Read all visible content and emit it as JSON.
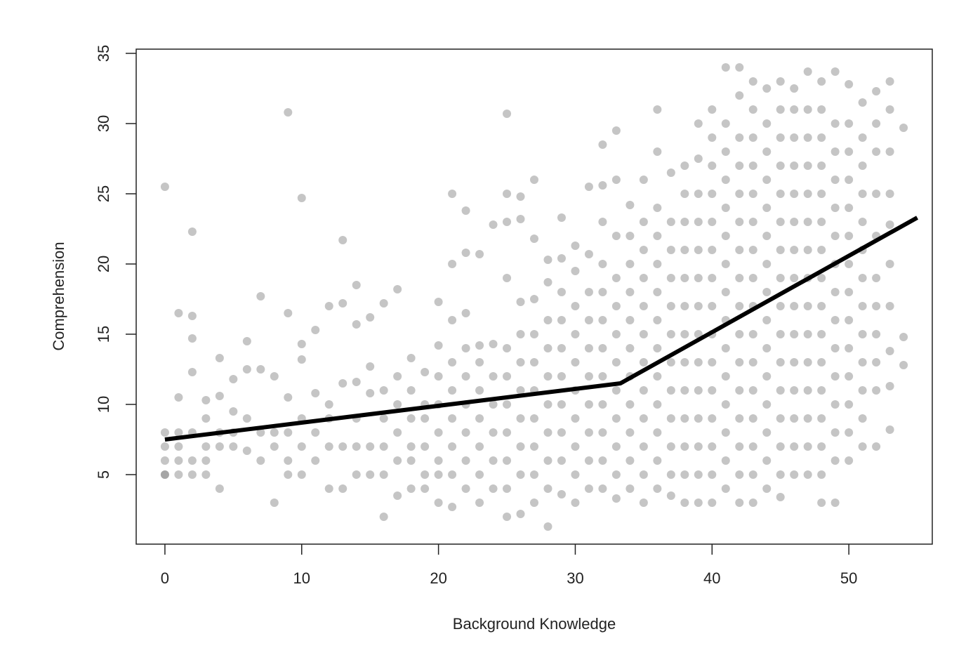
{
  "chart_data": {
    "type": "scatter",
    "x_label": "Background Knowledge",
    "y_label": "Comprehension",
    "xlim": [
      -2.1,
      56.1
    ],
    "xticks": [
      0,
      10,
      20,
      30,
      40,
      50
    ],
    "ylim": [
      0.05,
      35.3
    ],
    "yticks": [
      5,
      10,
      15,
      20,
      25,
      30,
      35
    ],
    "series": [
      {
        "type": "scatter",
        "color": "#7f7f7f",
        "opacity": 0.45,
        "x": [
          0,
          0,
          0,
          0,
          0,
          0,
          1,
          1,
          1,
          1,
          1,
          1,
          2,
          2,
          2,
          2,
          2,
          2,
          2,
          3,
          3,
          3,
          3,
          3,
          4,
          4,
          4,
          4,
          4,
          5,
          5,
          5,
          5,
          6,
          6,
          6,
          6,
          7,
          7,
          7,
          7,
          8,
          8,
          8,
          8,
          9,
          9,
          9,
          9,
          9,
          9,
          10,
          10,
          10,
          10,
          10,
          10,
          11,
          11,
          11,
          11,
          12,
          12,
          12,
          12,
          12,
          13,
          13,
          13,
          13,
          13,
          14,
          14,
          14,
          14,
          14,
          14,
          15,
          15,
          15,
          15,
          15,
          16,
          16,
          16,
          16,
          16,
          16,
          17,
          17,
          17,
          17,
          17,
          17,
          18,
          18,
          18,
          18,
          18,
          18,
          19,
          19,
          19,
          19,
          19,
          19,
          20,
          20,
          20,
          20,
          20,
          20,
          20,
          20,
          21,
          21,
          21,
          21,
          21,
          21,
          21,
          21,
          21,
          22,
          22,
          22,
          22,
          22,
          22,
          22,
          22,
          22,
          23,
          23,
          23,
          23,
          23,
          23,
          23,
          23,
          24,
          24,
          24,
          24,
          24,
          24,
          24,
          25,
          25,
          25,
          25,
          25,
          25,
          25,
          25,
          25,
          25,
          25,
          26,
          26,
          26,
          26,
          26,
          26,
          26,
          26,
          26,
          26,
          27,
          27,
          27,
          27,
          27,
          27,
          27,
          27,
          27,
          27,
          28,
          28,
          28,
          28,
          28,
          28,
          28,
          28,
          28,
          28,
          29,
          29,
          29,
          29,
          29,
          29,
          29,
          29,
          29,
          29,
          30,
          30,
          30,
          30,
          30,
          30,
          30,
          30,
          30,
          30,
          31,
          31,
          31,
          31,
          31,
          31,
          31,
          31,
          31,
          31,
          32,
          32,
          32,
          32,
          32,
          32,
          32,
          32,
          32,
          32,
          32,
          32,
          33,
          33,
          33,
          33,
          33,
          33,
          33,
          33,
          33,
          33,
          33,
          33,
          34,
          34,
          34,
          34,
          34,
          34,
          34,
          34,
          34,
          34,
          34,
          35,
          35,
          35,
          35,
          35,
          35,
          35,
          35,
          35,
          35,
          35,
          35,
          36,
          36,
          36,
          36,
          36,
          36,
          36,
          36,
          36,
          36,
          36,
          36,
          36,
          37,
          37,
          37,
          37,
          37,
          37,
          37,
          37,
          37,
          37,
          37,
          37,
          38,
          38,
          38,
          38,
          38,
          38,
          38,
          38,
          38,
          38,
          38,
          38,
          38,
          39,
          39,
          39,
          39,
          39,
          39,
          39,
          39,
          39,
          39,
          39,
          39,
          39,
          39,
          40,
          40,
          40,
          40,
          40,
          40,
          40,
          40,
          40,
          40,
          40,
          40,
          40,
          40,
          40,
          41,
          41,
          41,
          41,
          41,
          41,
          41,
          41,
          41,
          41,
          41,
          41,
          41,
          41,
          41,
          42,
          42,
          42,
          42,
          42,
          42,
          42,
          42,
          42,
          42,
          42,
          42,
          42,
          42,
          42,
          42,
          43,
          43,
          43,
          43,
          43,
          43,
          43,
          43,
          43,
          43,
          43,
          43,
          43,
          43,
          43,
          43,
          44,
          44,
          44,
          44,
          44,
          44,
          44,
          44,
          44,
          44,
          44,
          44,
          44,
          44,
          44,
          45,
          45,
          45,
          45,
          45,
          45,
          45,
          45,
          45,
          45,
          45,
          45,
          45,
          45,
          45,
          45,
          46,
          46,
          46,
          46,
          46,
          46,
          46,
          46,
          46,
          46,
          46,
          46,
          46,
          46,
          46,
          47,
          47,
          47,
          47,
          47,
          47,
          47,
          47,
          47,
          47,
          47,
          47,
          47,
          47,
          47,
          48,
          48,
          48,
          48,
          48,
          48,
          48,
          48,
          48,
          48,
          48,
          48,
          48,
          48,
          48,
          48,
          49,
          49,
          49,
          49,
          49,
          49,
          49,
          49,
          49,
          49,
          49,
          49,
          49,
          49,
          49,
          50,
          50,
          50,
          50,
          50,
          50,
          50,
          50,
          50,
          50,
          50,
          50,
          50,
          50,
          51,
          51,
          51,
          51,
          51,
          51,
          51,
          51,
          51,
          51,
          51,
          51,
          51,
          52,
          52,
          52,
          52,
          52,
          52,
          52,
          52,
          52,
          52,
          52,
          53,
          53,
          53,
          53,
          53,
          53,
          53,
          53,
          53,
          53,
          54,
          54,
          54
        ],
        "values": [
          5,
          7,
          8,
          25.5,
          6,
          5,
          5,
          6,
          7,
          8,
          10.5,
          16.5,
          5,
          6,
          8,
          12.3,
          14.7,
          16.3,
          22.3,
          5,
          6,
          7,
          9,
          10.3,
          4,
          7,
          8,
          10.6,
          13.3,
          7,
          8,
          9.5,
          11.8,
          6.7,
          9,
          12.5,
          14.5,
          6,
          8,
          12.5,
          17.7,
          3,
          7,
          8,
          12,
          5,
          6,
          8,
          10.5,
          16.5,
          30.8,
          5,
          7,
          9,
          13.2,
          14.3,
          24.7,
          6,
          8,
          10.8,
          15.3,
          4,
          7,
          9,
          10,
          17,
          4,
          7,
          11.5,
          17.2,
          21.7,
          5,
          7,
          9,
          11.6,
          15.7,
          18.5,
          5,
          7,
          10.8,
          12.7,
          16.2,
          2,
          5,
          7,
          9,
          11,
          17.2,
          3.5,
          6,
          8,
          10,
          12,
          18.2,
          4,
          6,
          7,
          9,
          11,
          13.3,
          4,
          5,
          7,
          9,
          10,
          12.3,
          3,
          5,
          6,
          8,
          10,
          12,
          14.2,
          17.3,
          2.7,
          5,
          7,
          9,
          11,
          13,
          16,
          20,
          25,
          4,
          6,
          8,
          10,
          12,
          14,
          16.5,
          20.8,
          23.8,
          3,
          5,
          7,
          9,
          11,
          13,
          14.2,
          20.7,
          4,
          6,
          8,
          10,
          12,
          14.3,
          22.8,
          2,
          4,
          6,
          8,
          10,
          12,
          14,
          19,
          23,
          25,
          30.7,
          2.2,
          5,
          7,
          9,
          11,
          13,
          15,
          17.3,
          23.2,
          24.8,
          3,
          5,
          7,
          9,
          11,
          13,
          15,
          17.5,
          21.8,
          26,
          1.3,
          4,
          6,
          8,
          10,
          12,
          14,
          16,
          18.7,
          20.3,
          3.6,
          6,
          8,
          10,
          12,
          14,
          16,
          18,
          20.4,
          23.3,
          3,
          5,
          7,
          9,
          11,
          13,
          15,
          17,
          19.5,
          21.3,
          4,
          6,
          8,
          10,
          12,
          14,
          16,
          18,
          20.7,
          25.5,
          4,
          6,
          8,
          10,
          12,
          14,
          16,
          18,
          20,
          23,
          25.6,
          28.5,
          3.3,
          5,
          7,
          9,
          11,
          13,
          15,
          17,
          19,
          22,
          26,
          29.5,
          4,
          6,
          8,
          10,
          12,
          14,
          16,
          18,
          20,
          22,
          24.2,
          3,
          5,
          7,
          9,
          11,
          13,
          15,
          17,
          19,
          21,
          23,
          26,
          4,
          6,
          8,
          10,
          12,
          14,
          16,
          18,
          20,
          22,
          24,
          28,
          31,
          3.5,
          5,
          7,
          9,
          11,
          13,
          15,
          17,
          19,
          21,
          23,
          26.5,
          3,
          5,
          7,
          9,
          11,
          13,
          15,
          17,
          19,
          21,
          23,
          25,
          27,
          3,
          5,
          7,
          9,
          11,
          13,
          15,
          17,
          19,
          21,
          23,
          25,
          27.5,
          30,
          3,
          5,
          7,
          9,
          11,
          13,
          15,
          17,
          19,
          21,
          23,
          25,
          27,
          29,
          31,
          4,
          6,
          8,
          10,
          12,
          14,
          16,
          18,
          20,
          22,
          24,
          26,
          28,
          30,
          34,
          3,
          5,
          7,
          9,
          11,
          13,
          15,
          17,
          19,
          21,
          23,
          25,
          27,
          29,
          32,
          34,
          3,
          5,
          7,
          9,
          11,
          13,
          15,
          17,
          19,
          21,
          23,
          25,
          27,
          29,
          31,
          33,
          4,
          6,
          8,
          10,
          12,
          14,
          16,
          18,
          20,
          22,
          24,
          26,
          28,
          30,
          32.5,
          3.4,
          5,
          7,
          9,
          11,
          13,
          15,
          17,
          19,
          21,
          23,
          25,
          27,
          29,
          31,
          33,
          5,
          7,
          9,
          11,
          13,
          15,
          17,
          19,
          21,
          23,
          25,
          27,
          29,
          31,
          32.5,
          5,
          7,
          9,
          11,
          13,
          15,
          17,
          19,
          21,
          23,
          25,
          27,
          29,
          31,
          33.7,
          3,
          5,
          7,
          9,
          11,
          13,
          15,
          17,
          19,
          21,
          23,
          25,
          27,
          29,
          31,
          33,
          3,
          6,
          8,
          10,
          12,
          14,
          16,
          18,
          20,
          22,
          24,
          26,
          28,
          30,
          33.7,
          6,
          8,
          10,
          12,
          14,
          16,
          18,
          20,
          22,
          24,
          26,
          28,
          30,
          32.8,
          7,
          9,
          11,
          13,
          15,
          17,
          19,
          21,
          23,
          25,
          27,
          29,
          31.5,
          7,
          11,
          13,
          15,
          17,
          19,
          22,
          25,
          28,
          30,
          32.3,
          8.2,
          11.3,
          13.8,
          17,
          20,
          22.8,
          25,
          28,
          31,
          33,
          12.8,
          14.8,
          29.7
        ]
      },
      {
        "type": "line",
        "color": "#000000",
        "x": [
          0,
          33.3,
          55
        ],
        "values": [
          7.5,
          11.5,
          23.3
        ]
      }
    ]
  }
}
